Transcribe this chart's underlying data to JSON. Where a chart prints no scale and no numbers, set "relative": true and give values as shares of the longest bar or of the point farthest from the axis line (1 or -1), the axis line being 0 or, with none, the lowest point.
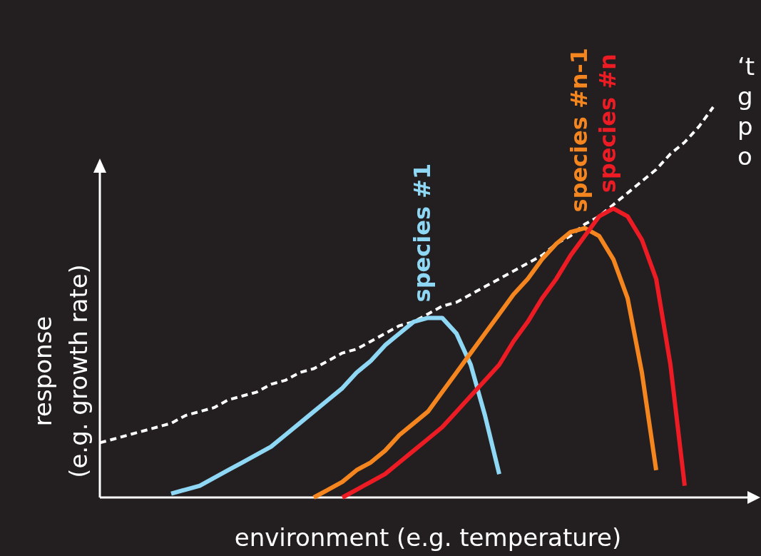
{
  "chart_data": {
    "type": "line",
    "relative": true,
    "xlabel": "environment (e.g. temperature)",
    "ylabel": "response\n(e.g. growth rate)",
    "categories": [
      null,
      null,
      null,
      null,
      null,
      null,
      null,
      null,
      null,
      null,
      null,
      null,
      null,
      null,
      null,
      null,
      null,
      null,
      null,
      null,
      null,
      null,
      null,
      null,
      null,
      null,
      null,
      null,
      null,
      null,
      null,
      null,
      null,
      null,
      null,
      null,
      null,
      null,
      null,
      null,
      null,
      null,
      null,
      null,
      null,
      null,
      null
    ],
    "annotations": [
      "‘t",
      "g",
      "p",
      "o"
    ],
    "series": [
      {
        "color": "#ffffff",
        "line_style": "dashed",
        "values": [
          0.14,
          0.15,
          0.16,
          0.17,
          0.18,
          0.19,
          0.21,
          0.22,
          0.23,
          0.25,
          0.26,
          0.27,
          0.29,
          0.3,
          0.32,
          0.33,
          0.35,
          0.37,
          0.38,
          0.4,
          0.42,
          0.44,
          0.45,
          0.47,
          0.49,
          0.5,
          0.52,
          0.54,
          0.56,
          0.58,
          0.6,
          0.62,
          0.65,
          0.67,
          0.7,
          0.72,
          0.75,
          0.78,
          0.81,
          0.84,
          0.88,
          0.91,
          0.95,
          1.0,
          null,
          null,
          null
        ]
      },
      {
        "name": "species #1",
        "color": "#8fd8f5",
        "line_style": "solid",
        "values": [
          null,
          null,
          null,
          null,
          null,
          0.01,
          0.02,
          0.03,
          0.05,
          0.07,
          0.09,
          0.11,
          0.13,
          0.16,
          0.19,
          0.22,
          0.25,
          0.28,
          0.32,
          0.35,
          0.39,
          0.42,
          0.45,
          0.46,
          0.46,
          0.42,
          0.34,
          0.21,
          0.06,
          null,
          null,
          null,
          null,
          null,
          null,
          null,
          null,
          null,
          null,
          null,
          null,
          null,
          null,
          null,
          null,
          null,
          null
        ]
      },
      {
        "name": "species #n-1",
        "color": "#f5861f",
        "line_style": "solid",
        "values": [
          null,
          null,
          null,
          null,
          null,
          null,
          null,
          null,
          null,
          null,
          null,
          null,
          null,
          null,
          null,
          0,
          0.02,
          0.04,
          0.07,
          0.09,
          0.12,
          0.16,
          0.19,
          0.22,
          0.27,
          0.32,
          0.37,
          0.42,
          0.47,
          0.52,
          0.56,
          0.61,
          0.65,
          0.68,
          0.69,
          0.67,
          0.61,
          0.51,
          0.32,
          0.07,
          null,
          null,
          null,
          null,
          null,
          null,
          null
        ]
      },
      {
        "name": "species #n",
        "color": "#ed1c24",
        "line_style": "solid",
        "values": [
          null,
          null,
          null,
          null,
          null,
          null,
          null,
          null,
          null,
          null,
          null,
          null,
          null,
          null,
          null,
          null,
          null,
          0,
          0.02,
          0.04,
          0.06,
          0.09,
          0.12,
          0.15,
          0.18,
          0.22,
          0.26,
          0.3,
          0.34,
          0.4,
          0.45,
          0.51,
          0.56,
          0.62,
          0.67,
          0.72,
          0.74,
          0.72,
          0.66,
          0.56,
          0.34,
          0.03,
          null,
          null,
          null,
          null,
          null
        ]
      }
    ]
  }
}
